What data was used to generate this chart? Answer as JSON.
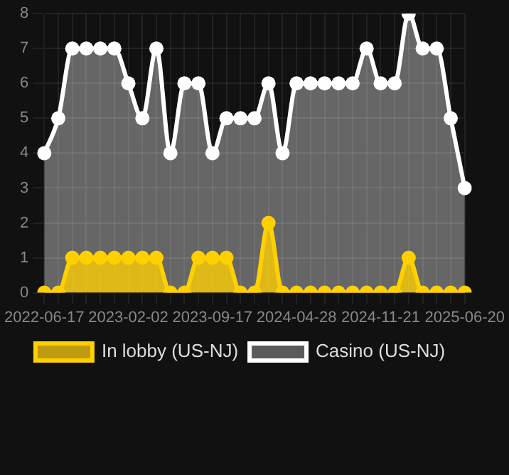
{
  "chart_data": {
    "type": "area",
    "categories": [
      "2022-06-17",
      null,
      null,
      null,
      null,
      null,
      "2023-02-02",
      null,
      null,
      null,
      null,
      null,
      "2023-09-17",
      null,
      null,
      null,
      null,
      null,
      "2024-04-28",
      null,
      null,
      null,
      null,
      null,
      "2024-11-21",
      null,
      null,
      null,
      null,
      null,
      "2025-06-20"
    ],
    "series": [
      {
        "name": "In lobby (US-NJ)",
        "color": "#ffd000",
        "values": [
          0,
          0,
          1,
          1,
          1,
          1,
          1,
          1,
          1,
          0,
          0,
          1,
          1,
          1,
          0,
          0,
          2,
          0,
          0,
          0,
          0,
          0,
          0,
          0,
          0,
          0,
          1,
          0,
          0,
          0,
          0
        ]
      },
      {
        "name": "Casino (US-NJ)",
        "color": "#ffffff",
        "values": [
          4,
          5,
          7,
          7,
          7,
          7,
          6,
          5,
          7,
          4,
          6,
          6,
          4,
          5,
          5,
          5,
          6,
          4,
          6,
          6,
          6,
          6,
          6,
          7,
          6,
          6,
          8,
          7,
          7,
          5,
          3
        ]
      }
    ],
    "ylim": [
      0,
      8
    ],
    "yticks": [
      0,
      1,
      2,
      3,
      4,
      5,
      6,
      7,
      8
    ],
    "grid": true,
    "legend": "bottom",
    "marker": "circle",
    "line_style": "solid"
  }
}
